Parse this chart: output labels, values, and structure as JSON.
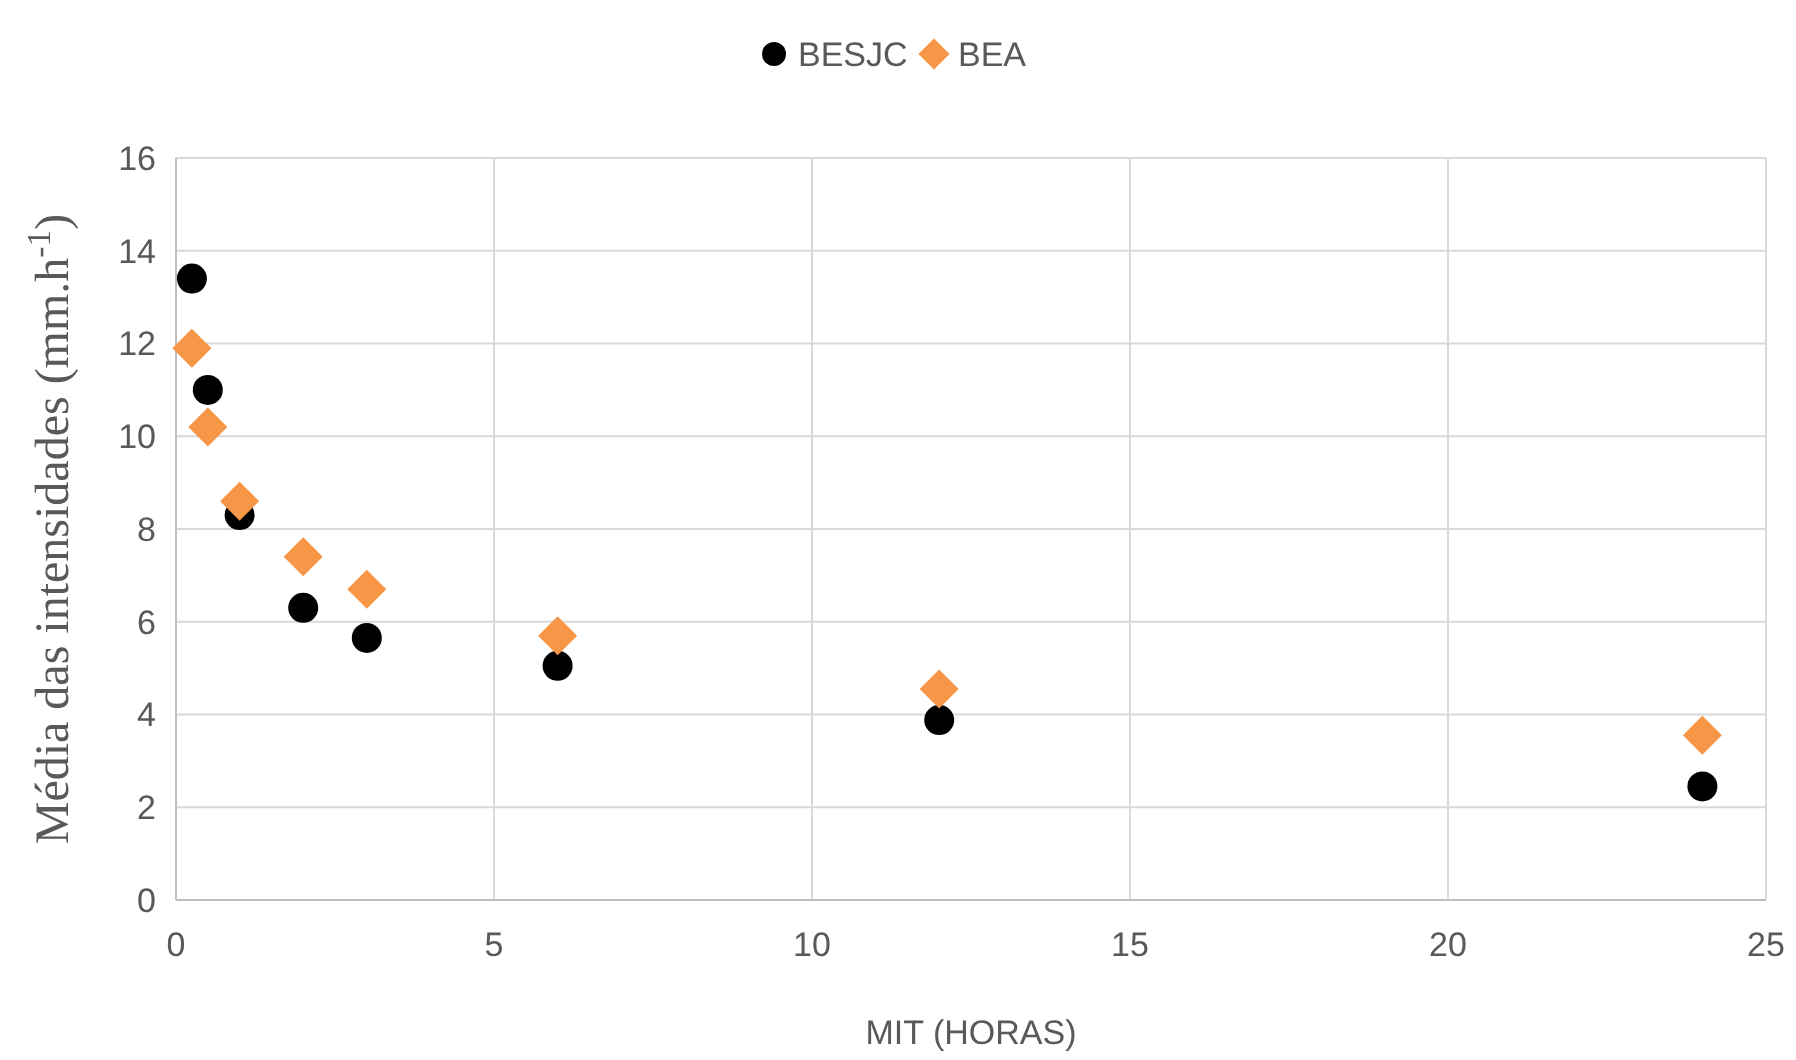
{
  "chart_data": {
    "type": "scatter",
    "xlabel": "MIT (HORAS)",
    "ylabel": "Média das intensidades (mm.h$^{-1}$)",
    "xlim": [
      0,
      25
    ],
    "xticks": [
      0,
      5,
      10,
      15,
      20,
      25
    ],
    "ylim": [
      0,
      16
    ],
    "yticks": [
      0,
      2,
      4,
      6,
      8,
      10,
      12,
      14,
      16
    ],
    "grid": true,
    "legend": "top",
    "x": [
      0.25,
      0.5,
      1,
      2,
      3,
      6,
      12,
      24
    ],
    "series": [
      {
        "name": "BESJC",
        "color": "#000000",
        "marker": "circle",
        "values": [
          13.4,
          11.0,
          8.3,
          6.3,
          5.65,
          5.05,
          3.88,
          2.45
        ]
      },
      {
        "name": "BEA",
        "color": "#f79646",
        "marker": "diamond",
        "values": [
          11.9,
          10.2,
          8.6,
          7.4,
          6.7,
          5.7,
          4.55,
          3.55
        ]
      }
    ]
  }
}
